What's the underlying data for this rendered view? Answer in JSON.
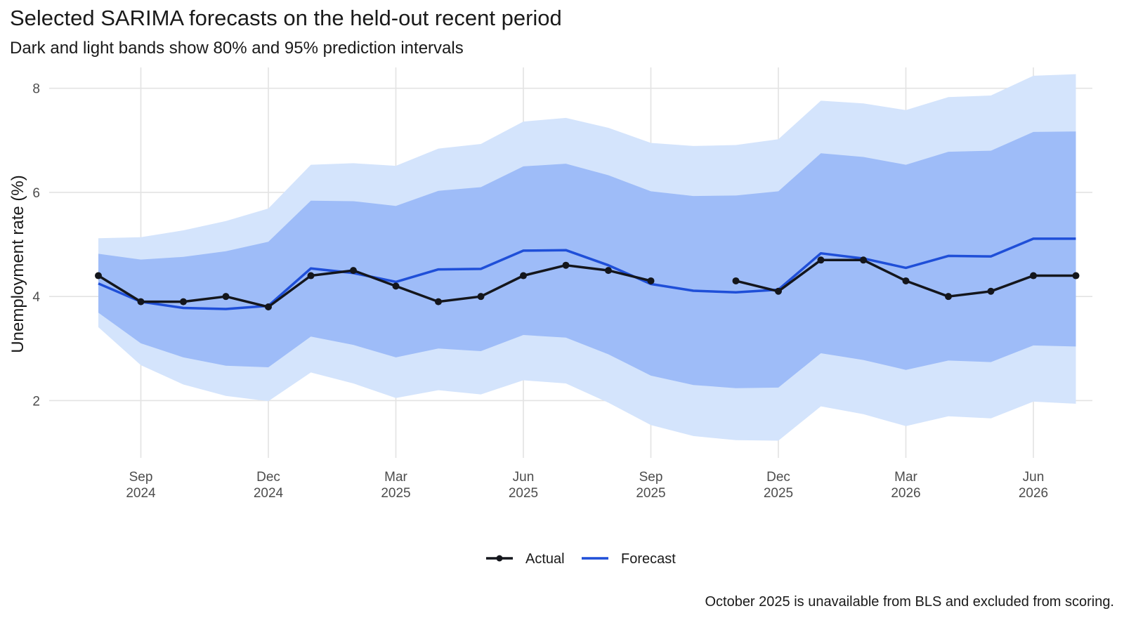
{
  "chart_data": {
    "type": "line",
    "title": "Selected SARIMA forecasts on the held-out recent period",
    "subtitle": "Dark and light bands show 80% and 95% prediction intervals",
    "xlabel": "",
    "ylabel": "Unemployment rate (%)",
    "caption": "October 2025 is unavailable from BLS and excluded from scoring.",
    "x": [
      "2024-08",
      "2024-09",
      "2024-10",
      "2024-11",
      "2024-12",
      "2025-01",
      "2025-02",
      "2025-03",
      "2025-04",
      "2025-05",
      "2025-06",
      "2025-07",
      "2025-08",
      "2025-09",
      "2025-10",
      "2025-11",
      "2025-12",
      "2026-01",
      "2026-02",
      "2026-03",
      "2026-04",
      "2026-05",
      "2026-06",
      "2026-07"
    ],
    "ylim": [
      0.9,
      8.4
    ],
    "y_ticks": [
      2,
      4,
      6,
      8
    ],
    "x_ticks": [
      {
        "x": "2024-09",
        "label": [
          "Sep",
          "2024"
        ]
      },
      {
        "x": "2024-12",
        "label": [
          "Dec",
          "2024"
        ]
      },
      {
        "x": "2025-03",
        "label": [
          "Mar",
          "2025"
        ]
      },
      {
        "x": "2025-06",
        "label": [
          "Jun",
          "2025"
        ]
      },
      {
        "x": "2025-09",
        "label": [
          "Sep",
          "2025"
        ]
      },
      {
        "x": "2025-12",
        "label": [
          "Dec",
          "2025"
        ]
      },
      {
        "x": "2026-03",
        "label": [
          "Mar",
          "2026"
        ]
      },
      {
        "x": "2026-06",
        "label": [
          "Jun",
          "2026"
        ]
      }
    ],
    "grid": true,
    "legend_position": "bottom",
    "series": [
      {
        "name": "Actual",
        "color": "#14161c",
        "values": [
          4.4,
          3.9,
          3.9,
          4.0,
          3.8,
          4.4,
          4.5,
          4.2,
          3.9,
          4.0,
          4.4,
          4.6,
          4.5,
          4.3,
          null,
          4.3,
          4.1,
          4.7,
          4.7,
          4.3,
          4.0,
          4.1,
          4.4,
          4.4
        ]
      },
      {
        "name": "Forecast",
        "color": "#1f4fd8",
        "values": [
          4.25,
          3.9,
          3.78,
          3.76,
          3.82,
          4.54,
          4.45,
          4.28,
          4.52,
          4.53,
          4.88,
          4.89,
          4.6,
          4.24,
          4.11,
          4.08,
          4.13,
          4.83,
          4.73,
          4.55,
          4.78,
          4.77,
          5.11,
          5.11
        ]
      }
    ],
    "intervals": [
      {
        "level": "95%",
        "color": "#d4e4fc",
        "lower": [
          3.41,
          2.68,
          2.31,
          2.09,
          1.99,
          2.54,
          2.33,
          2.05,
          2.2,
          2.12,
          2.39,
          2.33,
          1.96,
          1.53,
          1.32,
          1.24,
          1.23,
          1.89,
          1.74,
          1.51,
          1.7,
          1.66,
          1.98,
          1.94
        ],
        "upper": [
          5.12,
          5.14,
          5.27,
          5.45,
          5.69,
          6.53,
          6.56,
          6.51,
          6.84,
          6.93,
          7.36,
          7.43,
          7.24,
          6.95,
          6.89,
          6.91,
          7.02,
          7.76,
          7.71,
          7.58,
          7.83,
          7.86,
          8.24,
          8.27
        ]
      },
      {
        "level": "80%",
        "color": "#9ebcf8",
        "lower": [
          3.69,
          3.1,
          2.83,
          2.67,
          2.64,
          3.23,
          3.07,
          2.83,
          3.0,
          2.95,
          3.26,
          3.21,
          2.89,
          2.48,
          2.3,
          2.24,
          2.25,
          2.91,
          2.78,
          2.59,
          2.77,
          2.74,
          3.06,
          3.04
        ],
        "upper": [
          4.82,
          4.71,
          4.76,
          4.87,
          5.05,
          5.84,
          5.83,
          5.74,
          6.03,
          6.1,
          6.5,
          6.55,
          6.33,
          6.02,
          5.93,
          5.94,
          6.02,
          6.75,
          6.68,
          6.53,
          6.78,
          6.8,
          7.16,
          7.17
        ]
      }
    ]
  }
}
